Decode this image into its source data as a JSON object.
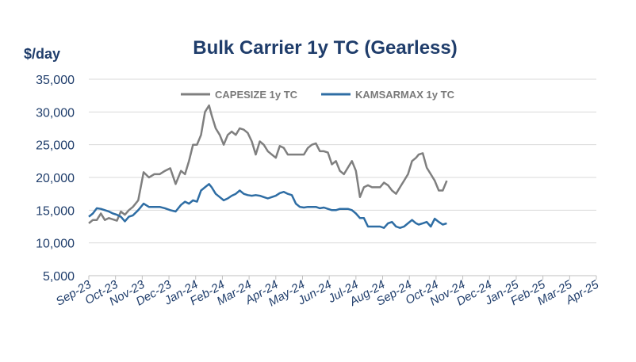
{
  "chart_data": {
    "type": "line",
    "title": "Bulk Carrier 1y TC (Gearless)",
    "ylabel": "$/day",
    "xlabel": "",
    "ylim": [
      5000,
      35000
    ],
    "yticks": [
      "5,000",
      "10,000",
      "15,000",
      "20,000",
      "25,000",
      "30,000",
      "35,000"
    ],
    "ytick_values": [
      5000,
      10000,
      15000,
      20000,
      25000,
      30000,
      35000
    ],
    "categories": [
      "Sep-23",
      "Oct-23",
      "Nov-23",
      "Dec-23",
      "Jan-24",
      "Feb-24",
      "Mar-24",
      "Apr-24",
      "May-24",
      "Jun-24",
      "Jul-24",
      "Aug-24",
      "Sep-24",
      "Oct-24",
      "Nov-24",
      "Dec-24",
      "Jan-25",
      "Feb-25",
      "Mar-25",
      "Apr-25"
    ],
    "legend_position": "top-center",
    "grid": true,
    "series": [
      {
        "name": "CAPESIZE 1y TC",
        "color": "#7f7f7f",
        "values": [
          13000,
          13500,
          13500,
          14500,
          13500,
          13800,
          13600,
          13400,
          14800,
          14300,
          15000,
          15500,
          16500,
          20800,
          20000,
          20500,
          20500,
          21000,
          21400,
          19000,
          21000,
          20500,
          22500,
          25000,
          25000,
          26500,
          30000,
          31000,
          29500,
          27500,
          26500,
          25000,
          26500,
          27000,
          26500,
          27500,
          27300,
          26800,
          25500,
          23500,
          25500,
          25000,
          24000,
          23500,
          23000,
          24800,
          24500,
          23500,
          23500,
          23500,
          23500,
          23500,
          24500,
          25000,
          25200,
          24000,
          24000,
          23800,
          22000,
          22500,
          21000,
          20500,
          21500,
          22500,
          21000,
          17000,
          18500,
          18800,
          18500,
          18500,
          18500,
          19200,
          18800,
          18000,
          17500,
          18500,
          19500,
          20500,
          22500,
          23000,
          23500,
          23700,
          21500,
          20500,
          19500,
          18000,
          18000,
          19500
        ],
        "x": [
          0,
          0.15,
          0.3,
          0.45,
          0.6,
          0.75,
          0.9,
          1.05,
          1.2,
          1.35,
          1.5,
          1.65,
          1.85,
          2.05,
          2.25,
          2.45,
          2.65,
          2.85,
          3.05,
          3.25,
          3.45,
          3.6,
          3.75,
          3.9,
          4.05,
          4.2,
          4.35,
          4.5,
          4.6,
          4.75,
          4.9,
          5.05,
          5.2,
          5.35,
          5.5,
          5.65,
          5.8,
          5.95,
          6.1,
          6.25,
          6.4,
          6.55,
          6.7,
          6.85,
          7.0,
          7.15,
          7.3,
          7.45,
          7.6,
          7.75,
          7.9,
          8.05,
          8.2,
          8.35,
          8.5,
          8.65,
          8.8,
          8.95,
          9.1,
          9.25,
          9.4,
          9.55,
          9.7,
          9.85,
          10.0,
          10.15,
          10.3,
          10.45,
          10.6,
          10.75,
          10.9,
          11.05,
          11.2,
          11.35,
          11.5,
          11.65,
          11.8,
          11.95,
          12.1,
          12.25,
          12.35,
          12.5,
          12.65,
          12.8,
          12.95,
          13.1,
          13.25,
          13.4
        ]
      },
      {
        "name": "KAMSARMAX 1y TC",
        "color": "#2e6da4",
        "values": [
          14000,
          14500,
          15300,
          15200,
          15000,
          14800,
          14500,
          14300,
          14000,
          13300,
          14000,
          14200,
          15000,
          16000,
          15500,
          15500,
          15500,
          15300,
          15000,
          14800,
          15800,
          16300,
          16000,
          16500,
          16300,
          18000,
          18500,
          19000,
          18500,
          17500,
          17000,
          16500,
          16800,
          17200,
          17500,
          18000,
          17500,
          17300,
          17200,
          17300,
          17200,
          17000,
          16800,
          17000,
          17200,
          17600,
          17800,
          17500,
          17300,
          16000,
          15500,
          15400,
          15500,
          15500,
          15500,
          15300,
          15400,
          15200,
          15000,
          15000,
          15200,
          15200,
          15200,
          15000,
          14500,
          13800,
          13800,
          12500,
          12500,
          12500,
          12500,
          12300,
          13000,
          13200,
          12500,
          12300,
          12500,
          13000,
          13500,
          13000,
          12800,
          13000,
          13200,
          12500,
          13700,
          13200,
          12800,
          13000
        ],
        "x": [
          0,
          0.15,
          0.3,
          0.45,
          0.6,
          0.75,
          0.9,
          1.05,
          1.2,
          1.35,
          1.5,
          1.65,
          1.85,
          2.05,
          2.25,
          2.45,
          2.65,
          2.85,
          3.05,
          3.25,
          3.45,
          3.6,
          3.75,
          3.9,
          4.05,
          4.2,
          4.35,
          4.5,
          4.6,
          4.75,
          4.9,
          5.05,
          5.2,
          5.35,
          5.5,
          5.65,
          5.8,
          5.95,
          6.1,
          6.25,
          6.4,
          6.55,
          6.7,
          6.85,
          7.0,
          7.15,
          7.3,
          7.45,
          7.6,
          7.75,
          7.9,
          8.05,
          8.2,
          8.35,
          8.5,
          8.65,
          8.8,
          8.95,
          9.1,
          9.25,
          9.4,
          9.55,
          9.7,
          9.85,
          10.0,
          10.15,
          10.3,
          10.45,
          10.6,
          10.75,
          10.9,
          11.05,
          11.2,
          11.35,
          11.5,
          11.65,
          11.8,
          11.95,
          12.1,
          12.25,
          12.35,
          12.5,
          12.65,
          12.8,
          12.95,
          13.1,
          13.25,
          13.4
        ]
      }
    ]
  }
}
